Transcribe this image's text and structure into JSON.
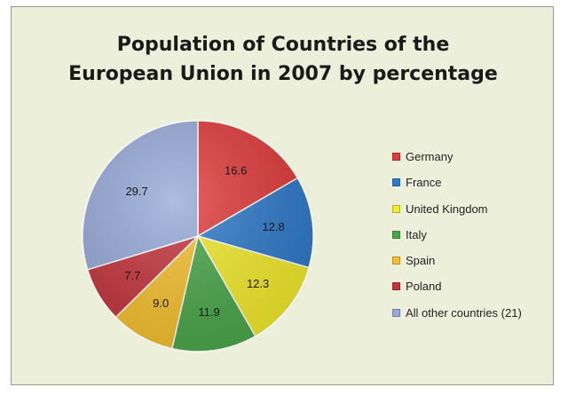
{
  "chart_data": {
    "type": "pie",
    "title": "Population of Countries of the\nEuropean Union in 2007 by percentage",
    "legend_position": "right",
    "categories": [
      "Germany",
      "France",
      "United Kingdom",
      "Italy",
      "Spain",
      "Poland",
      "All other countries (21)"
    ],
    "values": [
      16.6,
      12.8,
      12.3,
      11.9,
      9.0,
      7.7,
      29.7
    ],
    "value_labels": [
      "16.6",
      "12.8",
      "12.3",
      "11.9",
      "9.0",
      "7.7",
      "29.7"
    ],
    "colors": [
      "#e03a3a",
      "#2f79c9",
      "#f2ea2c",
      "#4aa64a",
      "#f5c02e",
      "#c3343c",
      "#96a9d8"
    ]
  }
}
